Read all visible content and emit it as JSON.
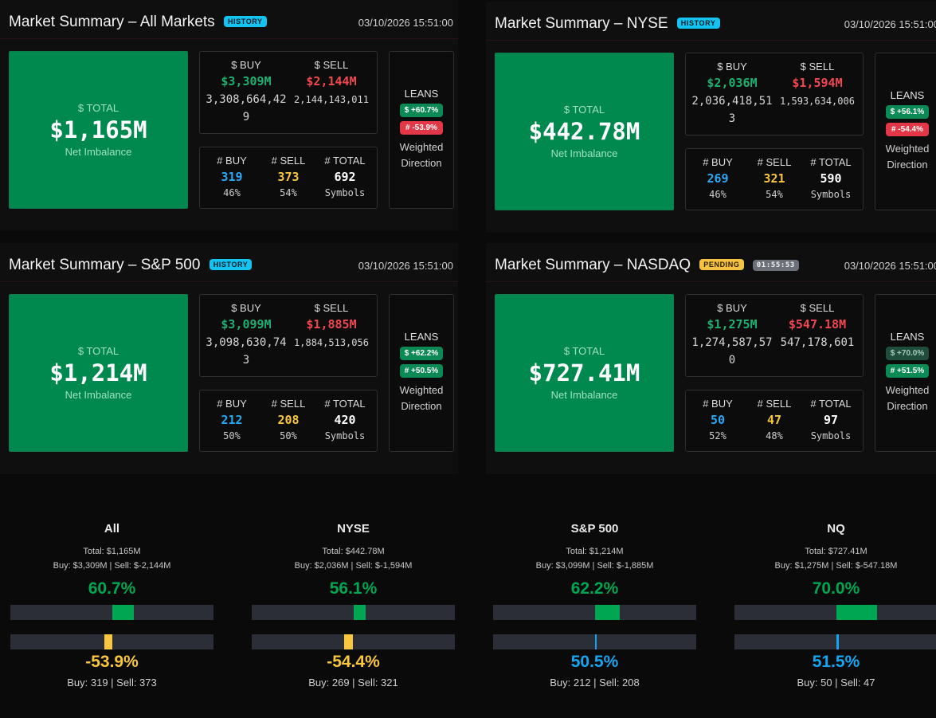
{
  "panels": [
    {
      "title": "Market Summary – All Markets",
      "badge": "HISTORY",
      "timer": "",
      "timestamp": "03/10/2026 15:51:00",
      "total_label": "$ TOTAL",
      "total_value": "$1,165M",
      "total_sub": "Net Imbalance",
      "buy_label": "$ BUY",
      "buy_value": "$3,309M",
      "buy_raw": "3,308,664,429",
      "sell_label": "$ SELL",
      "sell_value": "$2,144M",
      "sell_raw": "2,144,143,011",
      "nbuy_label": "# BUY",
      "nbuy_value": "319",
      "nbuy_pct": "46%",
      "nsell_label": "# SELL",
      "nsell_value": "373",
      "nsell_pct": "54%",
      "ntotal_label": "# TOTAL",
      "ntotal_value": "692",
      "ntotal_sub": "Symbols",
      "leans_label": "LEANS",
      "lean_dollar": "$ +60.7%",
      "lean_count": "# -53.9%",
      "weighted_label": "Weighted Direction"
    },
    {
      "title": "Market Summary – NYSE",
      "badge": "HISTORY",
      "timer": "",
      "timestamp": "03/10/2026 15:51:00",
      "total_label": "$ TOTAL",
      "total_value": "$442.78M",
      "total_sub": "Net Imbalance",
      "buy_label": "$ BUY",
      "buy_value": "$2,036M",
      "buy_raw": "2,036,418,513",
      "sell_label": "$ SELL",
      "sell_value": "$1,594M",
      "sell_raw": "1,593,634,006",
      "nbuy_label": "# BUY",
      "nbuy_value": "269",
      "nbuy_pct": "46%",
      "nsell_label": "# SELL",
      "nsell_value": "321",
      "nsell_pct": "54%",
      "ntotal_label": "# TOTAL",
      "ntotal_value": "590",
      "ntotal_sub": "Symbols",
      "leans_label": "LEANS",
      "lean_dollar": "$ +56.1%",
      "lean_count": "# -54.4%",
      "weighted_label": "Weighted Direction"
    },
    {
      "title": "Market Summary – S&P 500",
      "badge": "HISTORY",
      "timer": "",
      "timestamp": "03/10/2026 15:51:00",
      "total_label": "$ TOTAL",
      "total_value": "$1,214M",
      "total_sub": "Net Imbalance",
      "buy_label": "$ BUY",
      "buy_value": "$3,099M",
      "buy_raw": "3,098,630,743",
      "sell_label": "$ SELL",
      "sell_value": "$1,885M",
      "sell_raw": "1,884,513,056",
      "nbuy_label": "# BUY",
      "nbuy_value": "212",
      "nbuy_pct": "50%",
      "nsell_label": "# SELL",
      "nsell_value": "208",
      "nsell_pct": "50%",
      "ntotal_label": "# TOTAL",
      "ntotal_value": "420",
      "ntotal_sub": "Symbols",
      "leans_label": "LEANS",
      "lean_dollar": "$ +62.2%",
      "lean_count": "# +50.5%",
      "weighted_label": "Weighted Direction"
    },
    {
      "title": "Market Summary – NASDAQ",
      "badge": "PENDING",
      "timer": "01:55:53",
      "timestamp": "03/10/2026 15:51:00",
      "total_label": "$ TOTAL",
      "total_value": "$727.41M",
      "total_sub": "Net Imbalance",
      "buy_label": "$ BUY",
      "buy_value": "$1,275M",
      "buy_raw": "1,274,587,570",
      "sell_label": "$ SELL",
      "sell_value": "$547.18M",
      "sell_raw": "547,178,601",
      "nbuy_label": "# BUY",
      "nbuy_value": "50",
      "nbuy_pct": "52%",
      "nsell_label": "# SELL",
      "nsell_value": "47",
      "nsell_pct": "48%",
      "ntotal_label": "# TOTAL",
      "ntotal_value": "97",
      "ntotal_sub": "Symbols",
      "leans_label": "LEANS",
      "lean_dollar": "$ +70.0%",
      "lean_count": "# +51.5%",
      "weighted_label": "Weighted Direction"
    }
  ],
  "mini": [
    {
      "title": "All",
      "total": "Total: $1,165M",
      "buysell": "Buy: $3,309M | Sell: $-2,144M",
      "dollar_pct_text": "60.7%",
      "dollar_pct": 60.7,
      "count_pct_text": "-53.9%",
      "count_pct": -53.9,
      "counts": "Buy: 319 | Sell: 373"
    },
    {
      "title": "NYSE",
      "total": "Total: $442.78M",
      "buysell": "Buy: $2,036M | Sell: $-1,594M",
      "dollar_pct_text": "56.1%",
      "dollar_pct": 56.1,
      "count_pct_text": "-54.4%",
      "count_pct": -54.4,
      "counts": "Buy: 269 | Sell: 321"
    },
    {
      "title": "S&P 500",
      "total": "Total: $1,214M",
      "buysell": "Buy: $3,099M | Sell: $-1,885M",
      "dollar_pct_text": "62.2%",
      "dollar_pct": 62.2,
      "count_pct_text": "50.5%",
      "count_pct": 50.5,
      "counts": "Buy: 212 | Sell: 208"
    },
    {
      "title": "NQ",
      "total": "Total: $727.41M",
      "buysell": "Buy: $1,275M | Sell: $-547.18M",
      "dollar_pct_text": "70.0%",
      "dollar_pct": 70.0,
      "count_pct_text": "51.5%",
      "count_pct": 51.5,
      "counts": "Buy: 50 | Sell: 47"
    }
  ],
  "colors": {
    "green": "#00a651",
    "red": "#f2474f",
    "blue": "#16a5f2",
    "yellow": "#f9c640"
  }
}
